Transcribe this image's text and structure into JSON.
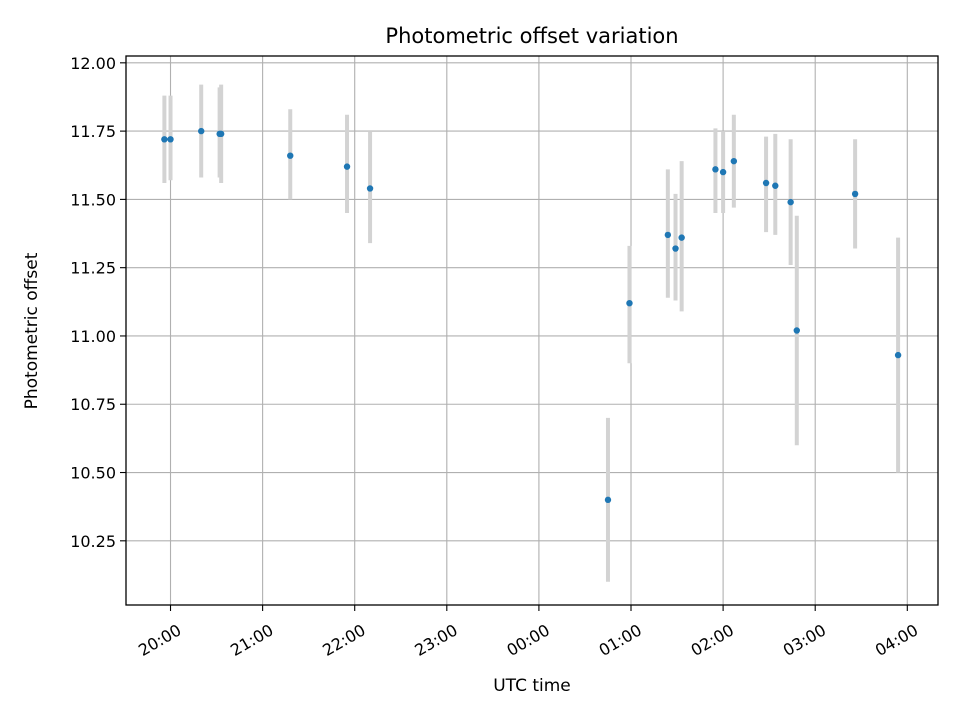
{
  "chart_data": {
    "type": "scatter",
    "title": "Photometric offset variation",
    "xlabel": "UTC time",
    "ylabel": "Photometric offset",
    "x_axis_kind": "time",
    "x_range": [
      "19:31",
      "04:20"
    ],
    "x_ticks": [
      "20:00",
      "21:00",
      "22:00",
      "23:00",
      "00:00",
      "01:00",
      "02:00",
      "03:00",
      "04:00"
    ],
    "x_tick_label_rotation": 30,
    "ylim": [
      10.015,
      12.025
    ],
    "y_ticks": [
      "10.25",
      "10.50",
      "10.75",
      "11.00",
      "11.25",
      "11.50",
      "11.75",
      "12.00"
    ],
    "grid": true,
    "marker_color": "#1f77b4",
    "errorbar_color": "#d3d3d3",
    "points": [
      {
        "x": "19:56",
        "y": 11.72,
        "err_low": 11.56,
        "err_high": 11.88
      },
      {
        "x": "20:00",
        "y": 11.72,
        "err_low": 11.57,
        "err_high": 11.88
      },
      {
        "x": "20:20",
        "y": 11.75,
        "err_low": 11.58,
        "err_high": 11.92
      },
      {
        "x": "20:32",
        "y": 11.74,
        "err_low": 11.58,
        "err_high": 11.91
      },
      {
        "x": "20:33",
        "y": 11.74,
        "err_low": 11.56,
        "err_high": 11.92
      },
      {
        "x": "21:18",
        "y": 11.66,
        "err_low": 11.5,
        "err_high": 11.83
      },
      {
        "x": "21:55",
        "y": 11.62,
        "err_low": 11.45,
        "err_high": 11.81
      },
      {
        "x": "22:10",
        "y": 11.54,
        "err_low": 11.34,
        "err_high": 11.75
      },
      {
        "x": "00:45",
        "y": 10.4,
        "err_low": 10.1,
        "err_high": 10.7
      },
      {
        "x": "00:59",
        "y": 11.12,
        "err_low": 10.9,
        "err_high": 11.33
      },
      {
        "x": "01:24",
        "y": 11.37,
        "err_low": 11.14,
        "err_high": 11.61
      },
      {
        "x": "01:29",
        "y": 11.32,
        "err_low": 11.13,
        "err_high": 11.52
      },
      {
        "x": "01:33",
        "y": 11.36,
        "err_low": 11.09,
        "err_high": 11.64
      },
      {
        "x": "01:55",
        "y": 11.61,
        "err_low": 11.45,
        "err_high": 11.76
      },
      {
        "x": "02:00",
        "y": 11.6,
        "err_low": 11.45,
        "err_high": 11.75
      },
      {
        "x": "02:07",
        "y": 11.64,
        "err_low": 11.47,
        "err_high": 11.81
      },
      {
        "x": "02:28",
        "y": 11.56,
        "err_low": 11.38,
        "err_high": 11.73
      },
      {
        "x": "02:34",
        "y": 11.55,
        "err_low": 11.37,
        "err_high": 11.74
      },
      {
        "x": "02:44",
        "y": 11.49,
        "err_low": 11.26,
        "err_high": 11.72
      },
      {
        "x": "02:48",
        "y": 11.02,
        "err_low": 10.6,
        "err_high": 11.44
      },
      {
        "x": "03:26",
        "y": 11.52,
        "err_low": 11.32,
        "err_high": 11.72
      },
      {
        "x": "03:54",
        "y": 10.93,
        "err_low": 10.5,
        "err_high": 11.36
      }
    ]
  }
}
